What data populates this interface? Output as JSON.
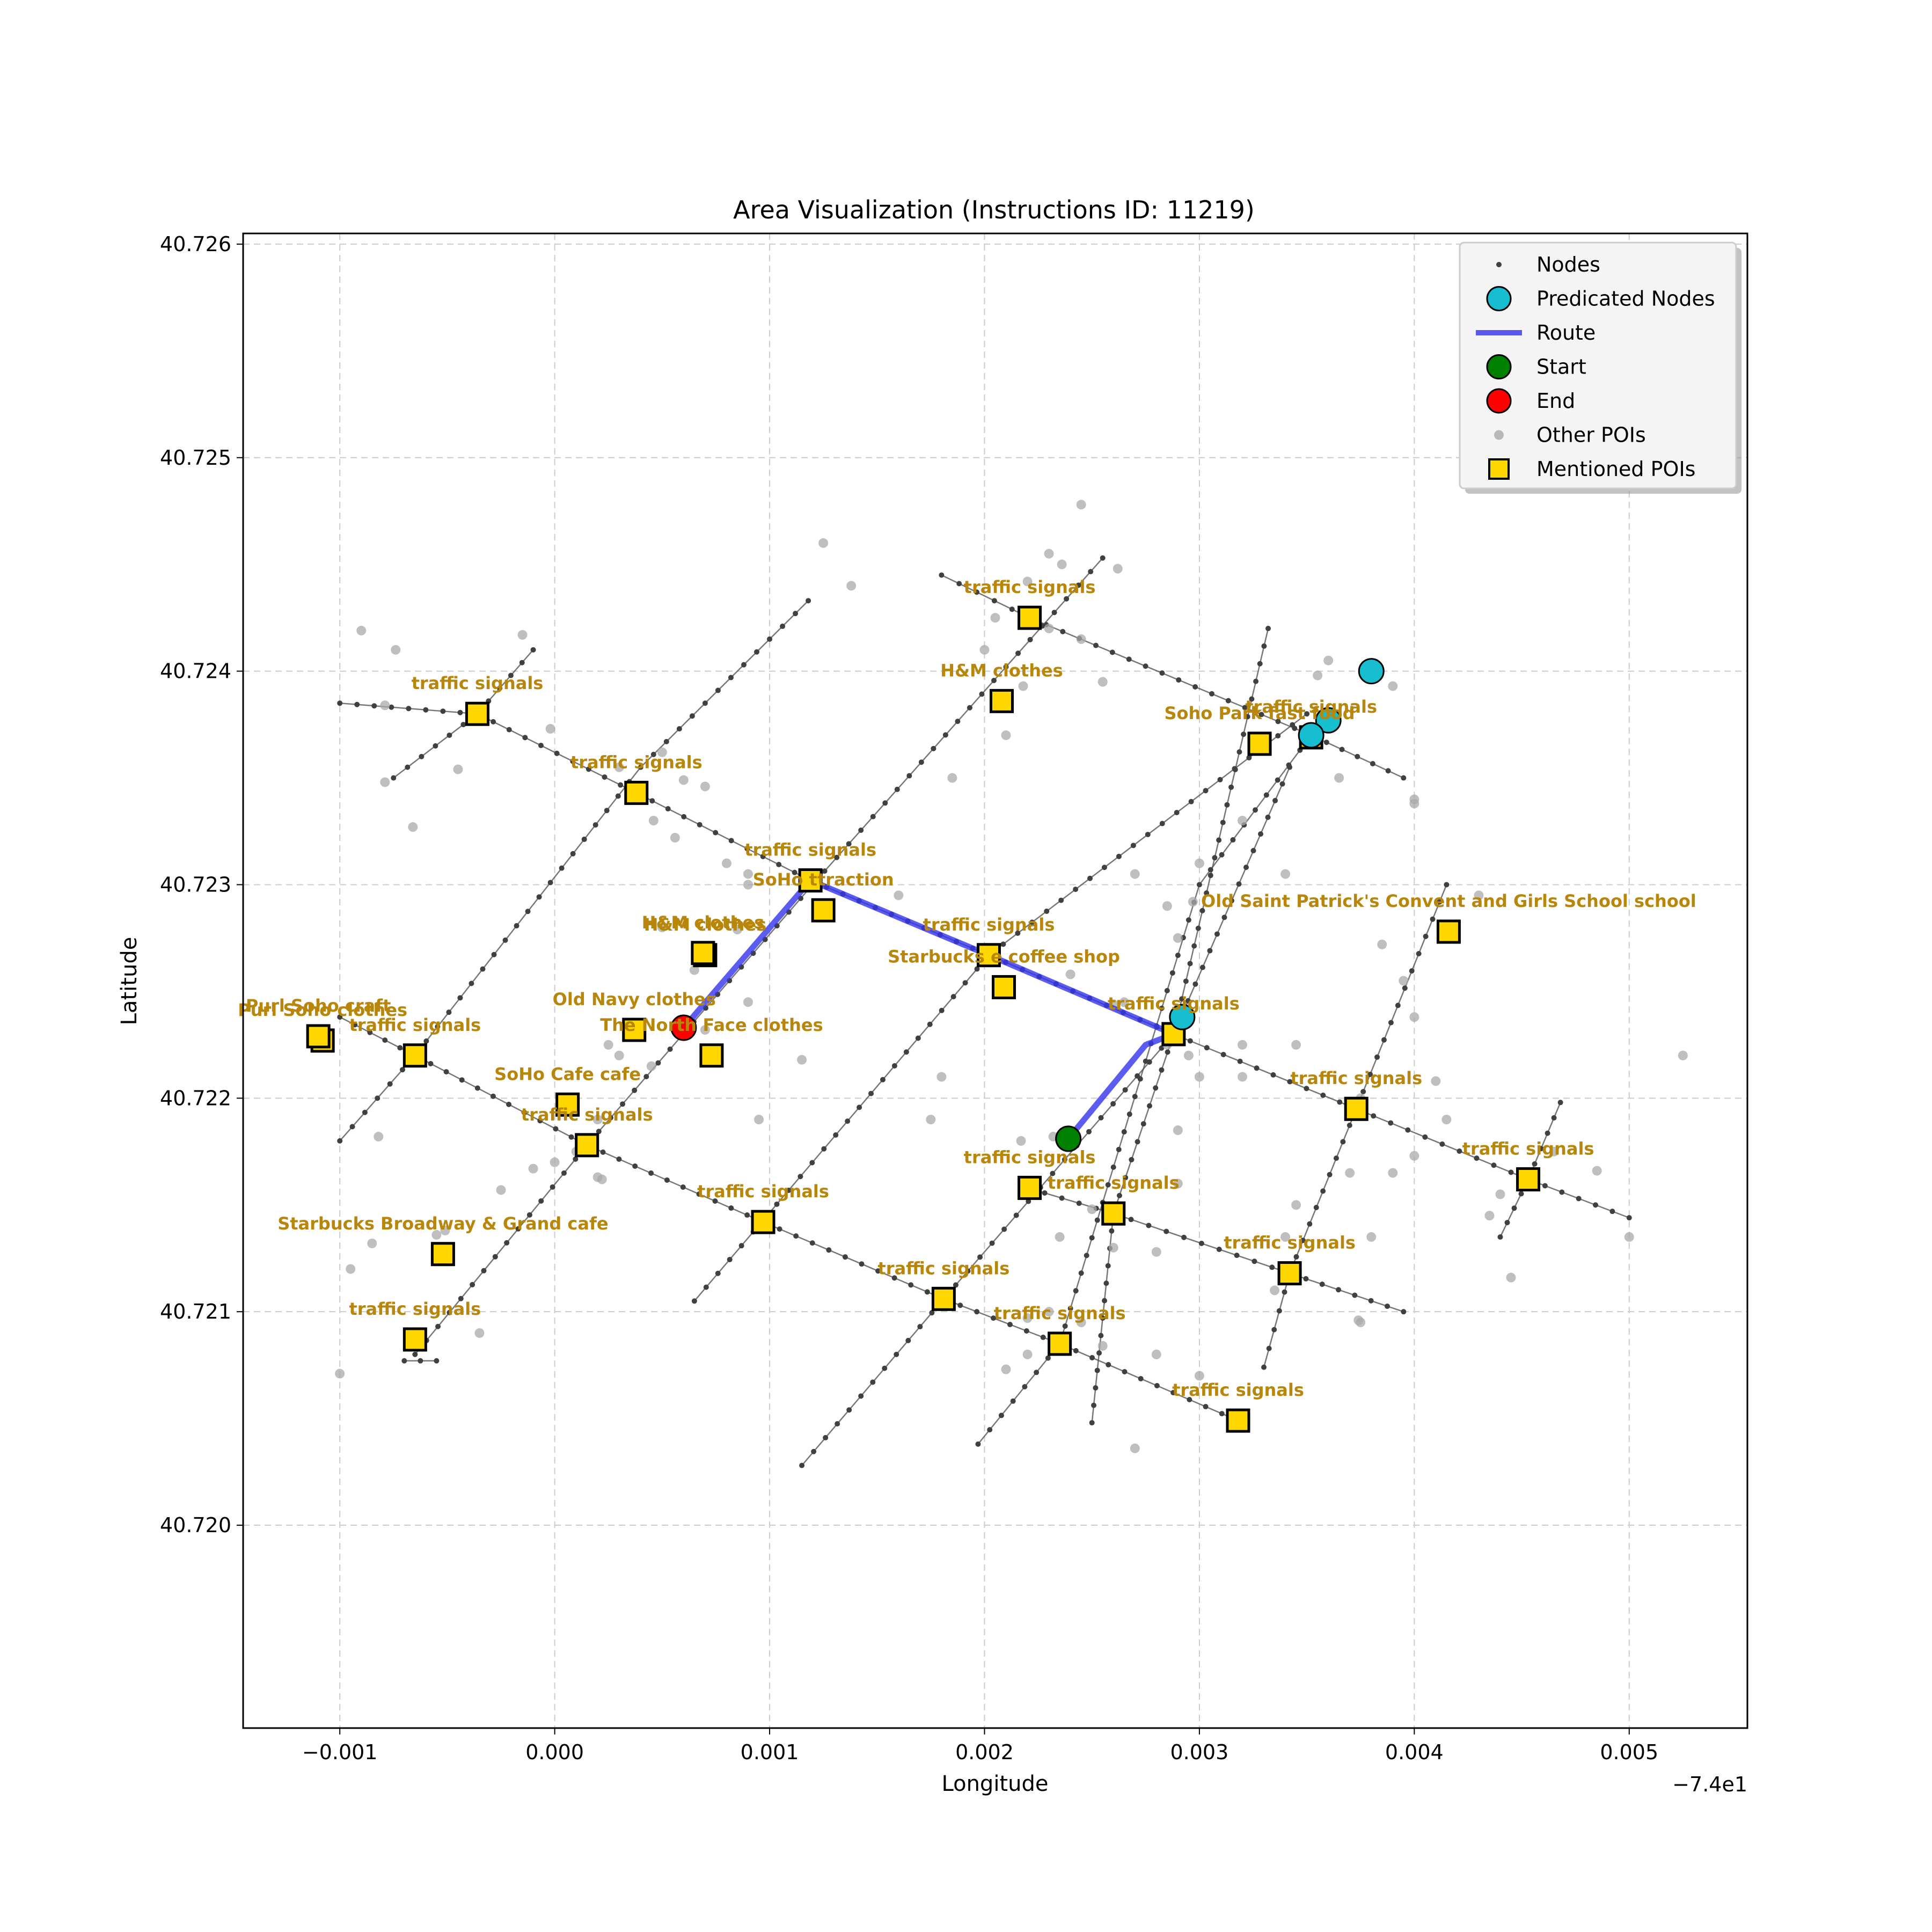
{
  "chart_data": {
    "type": "scatter",
    "title": "Area Visualization (Instructions ID: 11219)",
    "xlabel": "Longitude",
    "ylabel": "Latitude",
    "x_offset_label": "−7.4e1",
    "xlim": [
      -0.00145,
      0.00555
    ],
    "ylim": [
      40.71905,
      40.72605
    ],
    "xticks": [
      -0.001,
      0.0,
      0.001,
      0.002,
      0.003,
      0.004,
      0.005
    ],
    "xtick_labels": [
      "−0.001",
      "0.000",
      "0.001",
      "0.002",
      "0.003",
      "0.004",
      "0.005"
    ],
    "yticks": [
      40.72,
      40.721,
      40.722,
      40.723,
      40.724,
      40.725,
      40.726
    ],
    "ytick_labels": [
      "40.720",
      "40.721",
      "40.722",
      "40.723",
      "40.724",
      "40.725",
      "40.726"
    ],
    "grid": true,
    "legend_position": "top-right",
    "legend": [
      {
        "label": "Nodes",
        "key": "nodes"
      },
      {
        "label": "Predicated Nodes",
        "key": "predicted"
      },
      {
        "label": "Route",
        "key": "route"
      },
      {
        "label": "Start",
        "key": "start"
      },
      {
        "label": "End",
        "key": "end"
      },
      {
        "label": "Other POIs",
        "key": "other"
      },
      {
        "label": "Mentioned POIs",
        "key": "mentioned"
      }
    ],
    "colors": {
      "node": "#404040",
      "street": "#555555",
      "predicted": "#17becf",
      "route": "#3333ee",
      "start": "#008000",
      "end": "#ff0000",
      "other_poi": "#a9a9a9",
      "mentioned_fill": "#ffd700",
      "label": "#b8860b",
      "grid": "#cccccc"
    },
    "streets": [
      [
        [
          -0.001,
          40.72238
        ],
        [
          -0.00065,
          40.7222
        ],
        [
          0.00015,
          40.72178
        ],
        [
          0.00097,
          40.72142
        ],
        [
          0.00181,
          40.72106
        ],
        [
          0.00235,
          40.72085
        ],
        [
          0.00318,
          40.72049
        ]
      ],
      [
        [
          -0.001,
          40.72385
        ],
        [
          -0.00036,
          40.7238
        ],
        [
          0.00038,
          40.72343
        ],
        [
          0.00119,
          40.72302
        ],
        [
          0.00202,
          40.72267
        ],
        [
          0.00288,
          40.7223
        ],
        [
          0.00373,
          40.72195
        ],
        [
          0.00453,
          40.72162
        ],
        [
          0.005,
          40.72144
        ]
      ],
      [
        [
          0.0018,
          40.72445
        ],
        [
          0.00221,
          40.72425
        ],
        [
          0.00352,
          40.7237
        ],
        [
          0.00395,
          40.7235
        ]
      ],
      [
        [
          0.0022,
          40.72158
        ],
        [
          0.0026,
          40.72146
        ],
        [
          0.00342,
          40.72118
        ],
        [
          0.00395,
          40.721
        ]
      ],
      [
        [
          -0.001,
          40.7218
        ],
        [
          -0.00065,
          40.7222
        ],
        [
          0.0004,
          40.72355
        ],
        [
          0.00118,
          40.72433
        ]
      ],
      [
        [
          -0.00065,
          40.7208
        ],
        [
          0.00015,
          40.72178
        ],
        [
          0.0012,
          40.723
        ],
        [
          0.00255,
          40.72453
        ]
      ],
      [
        [
          0.00115,
          40.72028
        ],
        [
          0.00181,
          40.72106
        ],
        [
          0.00288,
          40.7223
        ],
        [
          0.00332,
          40.7242
        ]
      ],
      [
        [
          0.00065,
          40.72105
        ],
        [
          0.00202,
          40.72267
        ],
        [
          0.0035,
          40.7238
        ]
      ],
      [
        [
          -0.00075,
          40.7235
        ],
        [
          -0.00036,
          40.7238
        ],
        [
          -0.0001,
          40.7241
        ]
      ],
      [
        [
          0.00197,
          40.72038
        ],
        [
          0.00235,
          40.72085
        ],
        [
          0.003,
          40.723
        ],
        [
          0.00352,
          40.7237
        ]
      ],
      [
        [
          0.0025,
          40.72048
        ],
        [
          0.0026,
          40.72146
        ],
        [
          0.00288,
          40.7223
        ],
        [
          0.00342,
          40.72355
        ]
      ],
      [
        [
          0.0033,
          40.72074
        ],
        [
          0.00342,
          40.72118
        ],
        [
          0.00373,
          40.72195
        ],
        [
          0.00415,
          40.723
        ]
      ],
      [
        [
          0.0044,
          40.72135
        ],
        [
          0.00453,
          40.72162
        ],
        [
          0.00468,
          40.72198
        ]
      ],
      [
        [
          -0.0007,
          40.72077
        ],
        [
          -0.00055,
          40.72077
        ]
      ]
    ],
    "route": [
      [
        0.00239,
        40.72181
      ],
      [
        0.00275,
        40.72225
      ],
      [
        0.00288,
        40.7223
      ],
      [
        0.00202,
        40.72267
      ],
      [
        0.00119,
        40.72302
      ],
      [
        0.0006,
        40.72233
      ]
    ],
    "start": [
      0.00239,
      40.72181
    ],
    "end": [
      0.0006,
      40.72233
    ],
    "predicted_nodes": [
      [
        0.0038,
        40.724
      ],
      [
        0.0036,
        40.72377
      ],
      [
        0.00292,
        40.72238
      ],
      [
        0.00352,
        40.7237
      ]
    ],
    "other_pois": [
      [
        -0.0009,
        40.72419
      ],
      [
        -0.00074,
        40.7241
      ],
      [
        -0.00079,
        40.72384
      ],
      [
        -0.00079,
        40.72348
      ],
      [
        -0.00066,
        40.72327
      ],
      [
        -0.00045,
        40.72354
      ],
      [
        -0.00015,
        40.72417
      ],
      [
        -2e-05,
        40.72373
      ],
      [
        0.0003,
        40.72355
      ],
      [
        0.0005,
        40.72362
      ],
      [
        0.0006,
        40.72349
      ],
      [
        0.0007,
        40.72346
      ],
      [
        0.00046,
        40.7233
      ],
      [
        0.00056,
        40.72322
      ],
      [
        0.0008,
        40.7231
      ],
      [
        0.0009,
        40.723
      ],
      [
        0.00125,
        40.7246
      ],
      [
        0.00138,
        40.7244
      ],
      [
        0.002,
        40.7241
      ],
      [
        0.00205,
        40.72425
      ],
      [
        0.0022,
        40.72442
      ],
      [
        0.0023,
        40.72455
      ],
      [
        0.00236,
        40.7245
      ],
      [
        0.0023,
        40.7242
      ],
      [
        0.00245,
        40.72478
      ],
      [
        0.00245,
        40.72415
      ],
      [
        0.00255,
        40.72395
      ],
      [
        0.00262,
        40.72448
      ],
      [
        0.00218,
        40.72393
      ],
      [
        0.00185,
        40.7235
      ],
      [
        0.0032,
        40.7233
      ],
      [
        0.0034,
        40.72305
      ],
      [
        0.0036,
        40.72405
      ],
      [
        0.00355,
        40.72398
      ],
      [
        0.00365,
        40.7235
      ],
      [
        0.0039,
        40.72393
      ],
      [
        0.004,
        40.72338
      ],
      [
        0.004,
        40.7234
      ],
      [
        0.0027,
        40.72305
      ],
      [
        0.00285,
        40.7229
      ],
      [
        0.003,
        40.7231
      ],
      [
        0.0029,
        40.72275
      ],
      [
        0.0024,
        40.72258
      ],
      [
        0.0026,
        40.72244
      ],
      [
        0.00265,
        40.72245
      ],
      [
        0.00285,
        40.72225
      ],
      [
        0.003,
        40.7221
      ],
      [
        0.0032,
        40.7221
      ],
      [
        0.0032,
        40.72225
      ],
      [
        0.00345,
        40.72225
      ],
      [
        0.00385,
        40.72272
      ],
      [
        0.00395,
        40.72255
      ],
      [
        0.004,
        40.72238
      ],
      [
        0.00375,
        40.722
      ],
      [
        0.0041,
        40.72208
      ],
      [
        0.00415,
        40.7219
      ],
      [
        0.0043,
        40.72295
      ],
      [
        0.00465,
        40.72175
      ],
      [
        0.0044,
        40.72155
      ],
      [
        0.00435,
        40.72145
      ],
      [
        0.00485,
        40.72166
      ],
      [
        0.00525,
        40.7222
      ],
      [
        0.005,
        40.72135
      ],
      [
        0.00445,
        40.72116
      ],
      [
        0.00375,
        40.72095
      ],
      [
        0.00374,
        40.72096
      ],
      [
        0.0038,
        40.72135
      ],
      [
        0.0037,
        40.72165
      ],
      [
        0.0039,
        40.72165
      ],
      [
        0.004,
        40.72173
      ],
      [
        0.0034,
        40.72135
      ],
      [
        0.00345,
        40.7215
      ],
      [
        0.00335,
        40.7211
      ],
      [
        0.0029,
        40.7216
      ],
      [
        0.0029,
        40.72185
      ],
      [
        0.0026,
        40.7213
      ],
      [
        0.0028,
        40.72128
      ],
      [
        0.0025,
        40.72148
      ],
      [
        0.00235,
        40.72135
      ],
      [
        0.00232,
        40.72182
      ],
      [
        0.00217,
        40.7218
      ],
      [
        0.0027,
        40.72036
      ],
      [
        0.0028,
        40.7208
      ],
      [
        0.003,
        40.7207
      ],
      [
        0.00255,
        40.72084
      ],
      [
        0.00245,
        40.72095
      ],
      [
        0.0023,
        40.721
      ],
      [
        0.0022,
        40.72097
      ],
      [
        0.0022,
        40.7208
      ],
      [
        0.0021,
        40.72073
      ],
      [
        0.00175,
        40.7219
      ],
      [
        0.0018,
        40.7221
      ],
      [
        0.00115,
        40.72218
      ],
      [
        0.00095,
        40.7219
      ],
      [
        0.0009,
        40.72245
      ],
      [
        0.0009,
        40.72305
      ],
      [
        0.0005,
        40.7228
      ],
      [
        0.00085,
        40.72279
      ],
      [
        0.0007,
        40.7227
      ],
      [
        0.00065,
        40.7226
      ],
      [
        0.0003,
        40.7222
      ],
      [
        0.00025,
        40.72225
      ],
      [
        0.0002,
        40.7219
      ],
      [
        0.0002,
        40.72163
      ],
      [
        0.0001,
        40.72175
      ],
      [
        0.0,
        40.7217
      ],
      [
        5e-05,
        40.72195
      ],
      [
        -0.0001,
        40.72167
      ],
      [
        -0.00025,
        40.72157
      ],
      [
        -0.00055,
        40.72136
      ],
      [
        -0.00085,
        40.72132
      ],
      [
        -0.00095,
        40.7212
      ],
      [
        -0.00035,
        40.7209
      ],
      [
        -0.00082,
        40.72182
      ],
      [
        -0.001,
        40.72071
      ],
      [
        -0.00051,
        40.72138
      ],
      [
        0.00022,
        40.72162
      ],
      [
        0.00045,
        40.72215
      ],
      [
        0.0007,
        40.72232
      ],
      [
        0.0016,
        40.72295
      ],
      [
        0.0021,
        40.7237
      ],
      [
        0.00295,
        40.7222
      ],
      [
        0.00297,
        40.72292
      ]
    ],
    "mentioned_pois": [
      {
        "x": -0.00036,
        "y": 40.7238,
        "label": "traffic signals"
      },
      {
        "x": 0.00038,
        "y": 40.72343,
        "label": "traffic signals"
      },
      {
        "x": 0.00119,
        "y": 40.72302,
        "label": "traffic signals"
      },
      {
        "x": 0.00221,
        "y": 40.72425,
        "label": "traffic signals"
      },
      {
        "x": 0.00208,
        "y": 40.72386,
        "label": "H&M    clothes"
      },
      {
        "x": 0.00328,
        "y": 40.72366,
        "label": "Soho Park fast food"
      },
      {
        "x": 0.00352,
        "y": 40.72369,
        "label": "traffic signals"
      },
      {
        "x": 0.00125,
        "y": 40.72288,
        "label": "SoHo    ttraction"
      },
      {
        "x": 0.0007,
        "y": 40.72267,
        "label": "H&M    clothes"
      },
      {
        "x": 0.00069,
        "y": 40.72268,
        "label": "H&M    clothes"
      },
      {
        "x": 0.00202,
        "y": 40.72267,
        "label": "traffic signals"
      },
      {
        "x": 0.00209,
        "y": 40.72252,
        "label": "Starbucks   e coffee shop"
      },
      {
        "x": 0.00416,
        "y": 40.72278,
        "label": "Old Saint Patrick's Convent and Girls School school"
      },
      {
        "x": 0.00288,
        "y": 40.7223,
        "label": "traffic signals"
      },
      {
        "x": -0.00108,
        "y": 40.72227,
        "label": "Purl Soho     clothes"
      },
      {
        "x": -0.0011,
        "y": 40.72229,
        "label": "Purl Soho     craft"
      },
      {
        "x": 0.00037,
        "y": 40.72232,
        "label": "Old Navy      clothes"
      },
      {
        "x": 0.00073,
        "y": 40.7222,
        "label": "The North Face      clothes"
      },
      {
        "x": -0.00065,
        "y": 40.7222,
        "label": "traffic signals"
      },
      {
        "x": 6e-05,
        "y": 40.72197,
        "label": "SoHo Cafe cafe"
      },
      {
        "x": 0.00015,
        "y": 40.72178,
        "label": "traffic signals"
      },
      {
        "x": 0.00373,
        "y": 40.72195,
        "label": "traffic signals"
      },
      {
        "x": 0.00221,
        "y": 40.72158,
        "label": "traffic signals"
      },
      {
        "x": 0.0026,
        "y": 40.72146,
        "label": "traffic signals"
      },
      {
        "x": 0.00453,
        "y": 40.72162,
        "label": "traffic signals"
      },
      {
        "x": 0.00097,
        "y": 40.72142,
        "label": "traffic signals"
      },
      {
        "x": -0.00052,
        "y": 40.72127,
        "label": "Starbucks Broadway & Grand cafe"
      },
      {
        "x": 0.00342,
        "y": 40.72118,
        "label": "traffic signals"
      },
      {
        "x": 0.00181,
        "y": 40.72106,
        "label": "traffic signals"
      },
      {
        "x": -0.00065,
        "y": 40.72087,
        "label": "traffic signals"
      },
      {
        "x": 0.00235,
        "y": 40.72085,
        "label": "traffic signals"
      },
      {
        "x": 0.00318,
        "y": 40.72049,
        "label": "traffic signals"
      }
    ]
  }
}
